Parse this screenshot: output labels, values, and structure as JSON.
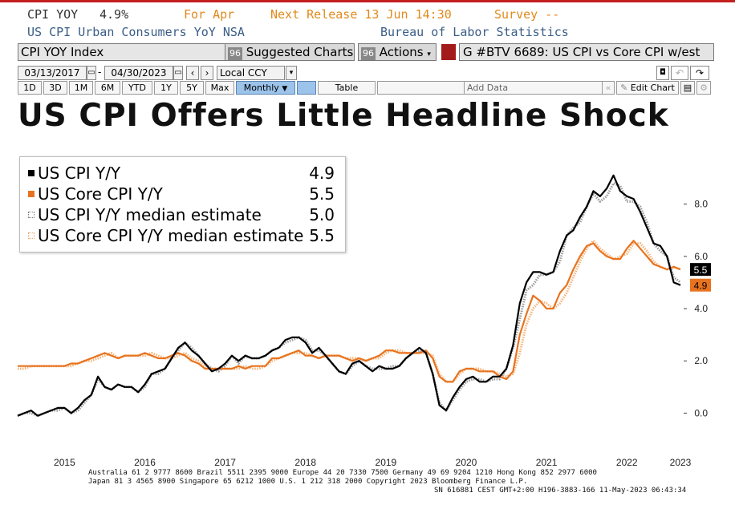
{
  "header": {
    "ticker": "CPI YOY",
    "last_value": "4.9%",
    "for_period": "For Apr",
    "next_release": "Next Release 13 Jun 14:30",
    "survey": "Survey --",
    "description": "US CPI Urban Consumers YoY NSA",
    "source": "Bureau of Labor Statistics"
  },
  "toolbar": {
    "index_field": "CPI YOY Index",
    "suggested_icon": "96",
    "suggested_label": "Suggested Charts",
    "actions_icon": "96",
    "actions_label": "Actions",
    "chart_id_label": "G #BTV 6689: US CPI vs Core CPI w/est"
  },
  "range_bar": {
    "start_date": "03/13/2017",
    "end_date": "04/30/2023",
    "separator": "-",
    "currency": "Local CCY"
  },
  "period_buttons": [
    "1D",
    "3D",
    "1M",
    "6M",
    "YTD",
    "1Y",
    "5Y",
    "Max"
  ],
  "frequency": "Monthly",
  "table_label": "Table",
  "add_data_label": "Add Data",
  "edit_chart_label": "Edit Chart",
  "icons": {
    "date_picker": "calendar-icon",
    "prev": "chevron-left-icon",
    "next": "chevron-right-icon",
    "dropdown": "caret-down-icon",
    "collapse": "double-chevron-left-icon",
    "edit": "pencil-icon",
    "export": "chart-export-icon",
    "settings": "gear-icon",
    "new_window": "new-window-icon",
    "undo": "undo-icon",
    "redo": "redo-icon"
  },
  "title": "US CPI Offers Little Headline Shock",
  "colors": {
    "cpi": "#000000",
    "core": "#e8731f",
    "median_cpi": "#9a9a9a",
    "median_core": "#f5b47a",
    "accent_red": "#c41e1e",
    "toolbar_blue": "#3a5d86",
    "active_button": "#9cc3ea"
  },
  "legend": [
    {
      "name": "US CPI Y/Y",
      "value": "4.9"
    },
    {
      "name": "US Core CPI Y/Y",
      "value": "5.5"
    },
    {
      "name": "US CPI Y/Y median estimate",
      "value": "5.0"
    },
    {
      "name": "US Core CPI Y/Y median estimate",
      "value": "5.5"
    }
  ],
  "footer": {
    "line1": "Australia 61 2 9777 8600 Brazil 5511 2395 9000 Europe 44 20 7330 7500 Germany 49 69 9204 1210 Hong Kong 852 2977 6000",
    "line2": "Japan 81 3 4565 8900        Singapore 65 6212 1000       U.S. 1 212 318 2000             Copyright 2023 Bloomberg Finance L.P.",
    "line3": "SN 616881 CEST GMT+2:00 H196-3883-166 11-May-2023 06:43:34"
  },
  "chart_data": {
    "type": "line",
    "title": "US CPI Offers Little Headline Shock",
    "xlabel": "",
    "ylabel": "",
    "x_start": "2014-12",
    "x_end": "2023-04",
    "frequency": "monthly",
    "ylim": [
      -1.0,
      9.8
    ],
    "yticks": [
      "0.0",
      "2.0",
      "4.0",
      "6.0",
      "8.0"
    ],
    "xticks": [
      "2015",
      "2016",
      "2017",
      "2018",
      "2019",
      "2020",
      "2021",
      "2022",
      "2023"
    ],
    "grid": false,
    "legend_position": "top-left",
    "last_value_labels": [
      {
        "series": "US CPI Y/Y",
        "value": "4.9"
      },
      {
        "series": "US Core CPI Y/Y",
        "value": "5.5"
      }
    ],
    "series": [
      {
        "name": "US CPI Y/Y",
        "values": [
          -0.1,
          0.0,
          0.1,
          -0.1,
          0.0,
          0.1,
          0.2,
          0.2,
          0.0,
          0.2,
          0.5,
          0.7,
          1.4,
          1.0,
          0.9,
          1.1,
          1.0,
          1.0,
          0.8,
          1.1,
          1.5,
          1.6,
          1.7,
          2.1,
          2.5,
          2.7,
          2.4,
          2.2,
          1.9,
          1.6,
          1.7,
          1.9,
          2.2,
          2.0,
          2.2,
          2.1,
          2.1,
          2.2,
          2.4,
          2.5,
          2.8,
          2.9,
          2.9,
          2.7,
          2.3,
          2.5,
          2.2,
          1.9,
          1.6,
          1.5,
          1.9,
          2.0,
          1.8,
          1.6,
          1.8,
          1.7,
          1.7,
          1.8,
          2.1,
          2.3,
          2.5,
          2.3,
          1.5,
          0.3,
          0.1,
          0.6,
          1.0,
          1.3,
          1.4,
          1.2,
          1.2,
          1.4,
          1.4,
          1.7,
          2.6,
          4.2,
          5.0,
          5.4,
          5.4,
          5.3,
          5.4,
          6.2,
          6.8,
          7.0,
          7.5,
          7.9,
          8.5,
          8.3,
          8.6,
          9.1,
          8.5,
          8.3,
          8.2,
          7.7,
          7.1,
          6.5,
          6.4,
          6.0,
          5.0,
          4.9
        ]
      },
      {
        "name": "US Core CPI Y/Y",
        "values": [
          1.8,
          1.8,
          1.8,
          1.8,
          1.8,
          1.8,
          1.8,
          1.8,
          1.9,
          1.9,
          2.0,
          2.1,
          2.2,
          2.3,
          2.2,
          2.1,
          2.2,
          2.2,
          2.2,
          2.3,
          2.2,
          2.1,
          2.1,
          2.2,
          2.3,
          2.2,
          2.0,
          1.9,
          1.7,
          1.7,
          1.7,
          1.7,
          1.7,
          1.8,
          1.7,
          1.8,
          1.8,
          1.8,
          2.1,
          2.1,
          2.2,
          2.3,
          2.4,
          2.2,
          2.2,
          2.1,
          2.2,
          2.2,
          2.2,
          2.1,
          2.0,
          2.1,
          2.0,
          2.1,
          2.2,
          2.4,
          2.4,
          2.3,
          2.3,
          2.3,
          2.3,
          2.4,
          2.1,
          1.4,
          1.2,
          1.2,
          1.6,
          1.7,
          1.7,
          1.6,
          1.6,
          1.6,
          1.4,
          1.3,
          1.6,
          3.0,
          3.8,
          4.5,
          4.3,
          4.0,
          4.0,
          4.6,
          4.9,
          5.5,
          6.0,
          6.4,
          6.5,
          6.2,
          6.0,
          5.9,
          5.9,
          6.3,
          6.6,
          6.3,
          6.0,
          5.7,
          5.6,
          5.5,
          5.6,
          5.5
        ]
      },
      {
        "name": "US CPI Y/Y median estimate",
        "values": [
          -0.1,
          0.0,
          0.0,
          -0.1,
          0.0,
          0.1,
          0.1,
          0.2,
          0.0,
          0.1,
          0.4,
          0.7,
          1.3,
          1.0,
          0.9,
          1.1,
          1.0,
          1.0,
          0.8,
          1.0,
          1.5,
          1.5,
          1.7,
          2.1,
          2.4,
          2.7,
          2.5,
          2.2,
          1.9,
          1.7,
          1.6,
          1.8,
          2.2,
          1.9,
          2.2,
          2.1,
          2.1,
          2.2,
          2.4,
          2.5,
          2.7,
          2.8,
          2.9,
          2.8,
          2.4,
          2.4,
          2.2,
          1.9,
          1.6,
          1.5,
          1.8,
          2.0,
          1.8,
          1.7,
          1.7,
          1.7,
          1.8,
          1.8,
          2.1,
          2.3,
          2.4,
          2.3,
          1.5,
          0.4,
          0.1,
          0.5,
          0.9,
          1.2,
          1.3,
          1.3,
          1.2,
          1.3,
          1.3,
          1.7,
          2.5,
          3.6,
          4.7,
          4.9,
          5.3,
          5.3,
          5.4,
          5.8,
          6.8,
          7.1,
          7.3,
          7.9,
          8.4,
          8.1,
          8.3,
          8.8,
          8.7,
          8.1,
          8.1,
          7.9,
          7.3,
          6.5,
          6.2,
          6.0,
          5.2,
          5.0
        ]
      },
      {
        "name": "US Core CPI Y/Y median estimate",
        "values": [
          1.7,
          1.7,
          1.8,
          1.8,
          1.8,
          1.8,
          1.8,
          1.8,
          1.8,
          1.9,
          2.0,
          2.0,
          2.1,
          2.2,
          2.3,
          2.1,
          2.2,
          2.2,
          2.2,
          2.2,
          2.3,
          2.2,
          2.1,
          2.1,
          2.2,
          2.3,
          2.1,
          2.0,
          1.8,
          1.7,
          1.7,
          1.7,
          1.7,
          1.7,
          1.8,
          1.7,
          1.7,
          1.8,
          2.0,
          2.1,
          2.2,
          2.3,
          2.3,
          2.3,
          2.2,
          2.1,
          2.2,
          2.2,
          2.2,
          2.1,
          2.1,
          2.1,
          2.0,
          2.1,
          2.1,
          2.3,
          2.4,
          2.4,
          2.3,
          2.3,
          2.3,
          2.3,
          2.2,
          1.5,
          1.2,
          1.2,
          1.5,
          1.7,
          1.7,
          1.7,
          1.6,
          1.6,
          1.5,
          1.4,
          1.5,
          2.3,
          3.4,
          4.0,
          4.3,
          4.2,
          4.0,
          4.2,
          4.6,
          5.2,
          5.8,
          6.3,
          6.6,
          6.3,
          6.1,
          5.9,
          6.0,
          6.1,
          6.5,
          6.5,
          6.2,
          5.8,
          5.6,
          5.5,
          5.6,
          5.5
        ]
      }
    ]
  }
}
